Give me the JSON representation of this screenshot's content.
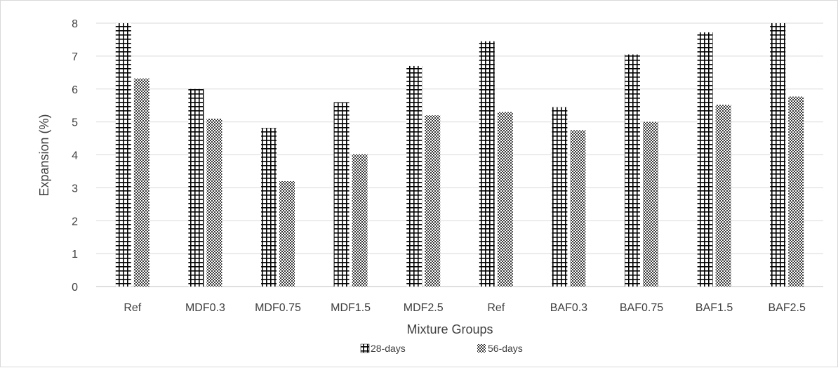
{
  "chart_data": {
    "type": "bar",
    "title": "",
    "xlabel": "Mixture Groups",
    "ylabel": "Expansion (%)",
    "ylim": [
      0,
      8
    ],
    "yticks": [
      "0",
      "1",
      "2",
      "3",
      "4",
      "5",
      "6",
      "7",
      "8"
    ],
    "grid": "horizontal",
    "legend_position": "bottom",
    "categories": [
      "Ref",
      "MDF0.3",
      "MDF0.75",
      "MDF1.5",
      "MDF2.5",
      "Ref",
      "BAF0.3",
      "BAF0.75",
      "BAF1.5",
      "BAF2.5"
    ],
    "series": [
      {
        "name": "28-days",
        "pattern": "grid-hatch",
        "color": "#000000",
        "values": [
          8.0,
          6.0,
          4.82,
          5.6,
          6.7,
          7.45,
          5.45,
          7.05,
          7.72,
          8.0
        ]
      },
      {
        "name": "56-days",
        "pattern": "checker-dots",
        "color": "#555555",
        "values": [
          6.32,
          5.1,
          3.2,
          4.02,
          5.2,
          5.3,
          4.75,
          5.0,
          5.52,
          5.77
        ]
      }
    ]
  }
}
